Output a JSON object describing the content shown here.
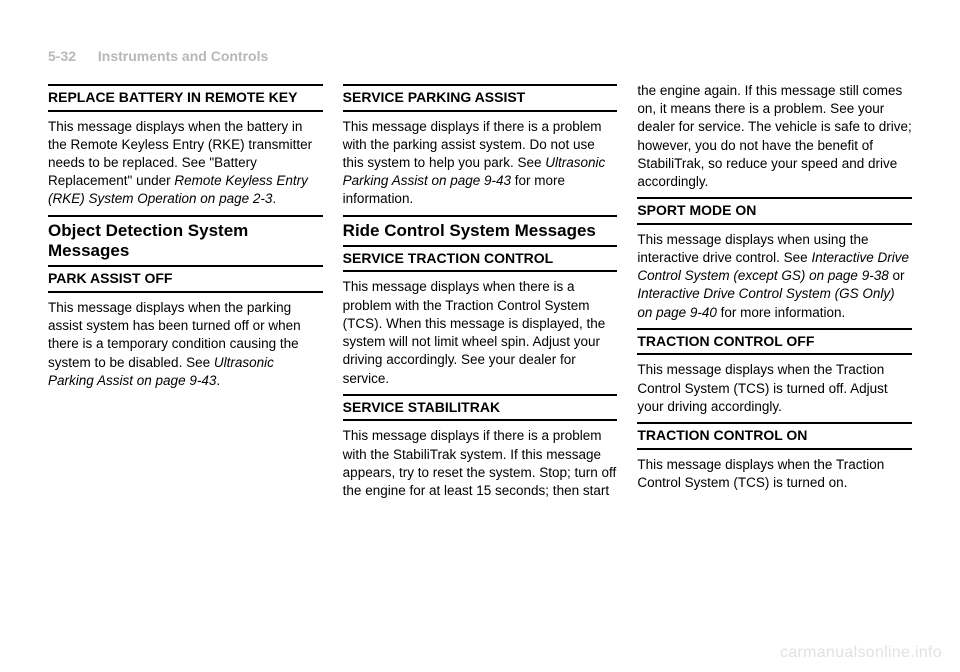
{
  "header": {
    "page": "5-32",
    "section": "Instruments and Controls"
  },
  "col1": {
    "m1_title": "REPLACE BATTERY IN REMOTE KEY",
    "m1_body_a": "This message displays when the battery in the Remote Keyless Entry (RKE) transmitter needs to be replaced. See \"Battery Replacement\" under ",
    "m1_ref": "Remote Keyless Entry (RKE) System Operation on page 2-3",
    "m1_body_b": ".",
    "s1_title": "Object Detection System Messages",
    "m2_title": "PARK ASSIST OFF",
    "m2_body_a": "This message displays when the parking assist system has been turned off or when there is a temporary condition causing the system to be disabled. See ",
    "m2_ref": "Ultrasonic Parking Assist on page 9-43",
    "m2_body_b": "."
  },
  "col2": {
    "m1_title": "SERVICE PARKING ASSIST",
    "m1_body_a": "This message displays if there is a problem with the parking assist system. Do not use this system to help you park. See ",
    "m1_ref": "Ultrasonic Parking Assist on page 9-43",
    "m1_body_b": " for more information.",
    "s1_title": "Ride Control System Messages",
    "m2_title": "SERVICE TRACTION CONTROL",
    "m2_body": "This message displays when there is a problem with the Traction Control System (TCS). When this message is displayed, the system will not limit wheel spin. Adjust your driving accordingly. See your dealer for service.",
    "m3_title": "SERVICE STABILITRAK",
    "m3_body": "This message displays if there is a problem with the StabiliTrak system. If this message appears, try to reset the system. Stop; turn off the engine for at least 15 seconds; then start"
  },
  "col3": {
    "p1": "the engine again. If this message still comes on, it means there is a problem. See your dealer for service. The vehicle is safe to drive; however, you do not have the benefit of StabiliTrak, so reduce your speed and drive accordingly.",
    "m1_title": "SPORT MODE ON",
    "m1_body_a": "This message displays when using the interactive drive control. See ",
    "m1_ref1": "Interactive Drive Control System (except GS) on page 9-38",
    "m1_mid": " or ",
    "m1_ref2": "Interactive Drive Control System (GS Only) on page 9-40",
    "m1_body_b": " for more information.",
    "m2_title": "TRACTION CONTROL OFF",
    "m2_body": "This message displays when the Traction Control System (TCS) is turned off. Adjust your driving accordingly.",
    "m3_title": "TRACTION CONTROL ON",
    "m3_body": "This message displays when the Traction Control System (TCS) is turned on."
  },
  "watermark": "carmanualsonline.info"
}
